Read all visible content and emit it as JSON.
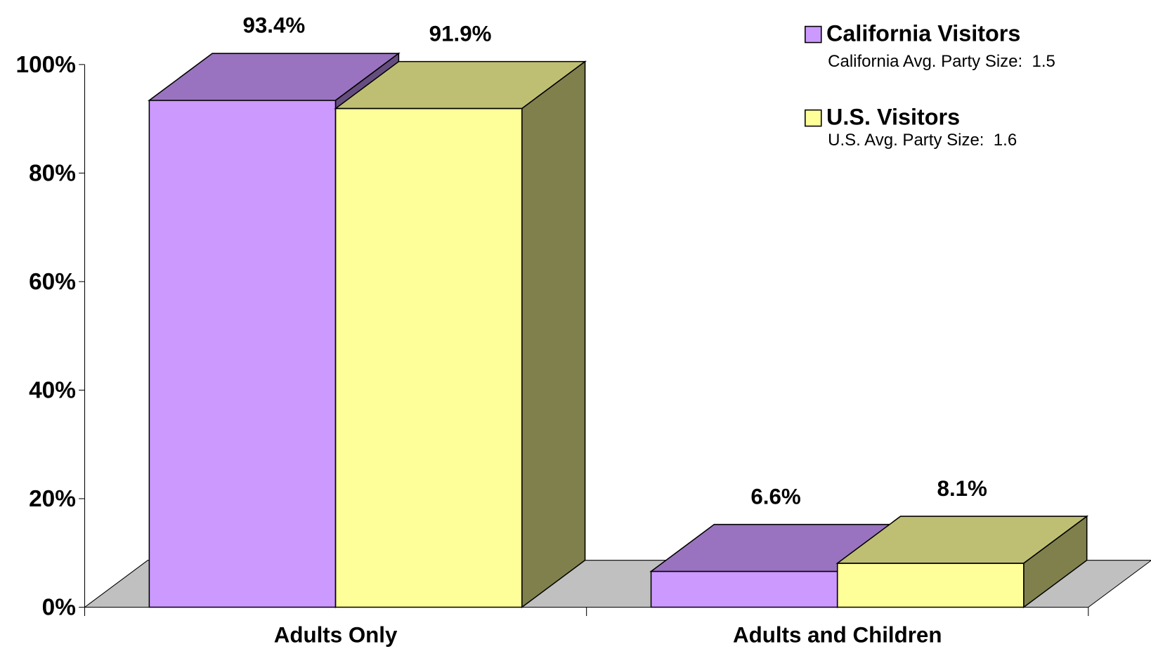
{
  "chart_data": {
    "type": "bar3d",
    "categories": [
      "Adults Only",
      "Adults and Children"
    ],
    "series": [
      {
        "name": "California Visitors",
        "color": "#cc99ff",
        "values": [
          93.4,
          6.6
        ],
        "value_labels": [
          "93.4%",
          "6.6%"
        ],
        "note": "California Avg. Party Size:  1.5"
      },
      {
        "name": "U.S. Visitors",
        "color": "#ffff99",
        "values": [
          91.9,
          8.1
        ],
        "value_labels": [
          "91.9%",
          "8.1%"
        ],
        "note": "U.S. Avg. Party Size:  1.6"
      }
    ],
    "ylim": [
      0,
      100
    ],
    "yticks": [
      {
        "value": 0,
        "label": "0%"
      },
      {
        "value": 20,
        "label": "20%"
      },
      {
        "value": 40,
        "label": "40%"
      },
      {
        "value": 60,
        "label": "60%"
      },
      {
        "value": 80,
        "label": "80%"
      },
      {
        "value": 100,
        "label": "100%"
      }
    ],
    "floor_color": "#c0c0c0",
    "legend": "top-right"
  }
}
